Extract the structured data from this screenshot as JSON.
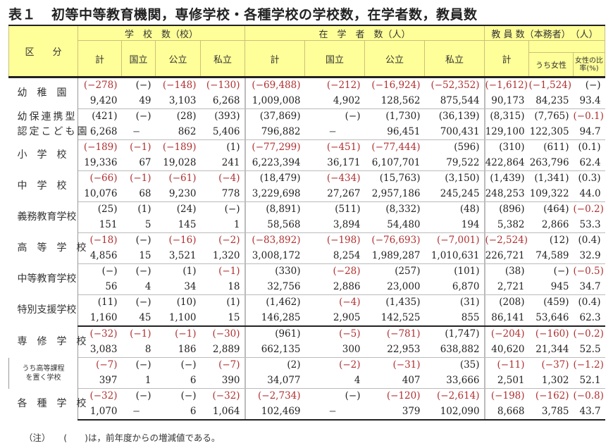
{
  "title": {
    "number": "表１",
    "text": "初等中等教育機関，専修学校・各種学校の学校数，在学者数，教員数"
  },
  "header": {
    "category": "区　　分",
    "groups": {
      "schools": "学　校　数（校）",
      "students": "在　学　者　数（人）",
      "teachers": "教 員 数（本務者）　（人）"
    },
    "cols": {
      "total": "計",
      "national": "国立",
      "public": "公立",
      "private": "私立",
      "female": "うち女性",
      "female_ratio": "女性の比率(%)"
    }
  },
  "rows": [
    {
      "label": "幼　稚　園",
      "chg": [
        "(−278)",
        "(−)",
        "(−148)",
        "(−130)",
        "(−69,488)",
        "(−212)",
        "(−16,924)",
        "(−52,352)",
        "(−1,612)",
        "(−1,524)",
        "(−)"
      ],
      "val": [
        "9,420",
        "49",
        "3,103",
        "6,268",
        "1,009,008",
        "4,902",
        "128,562",
        "875,544",
        "90,173",
        "84,235",
        "93.4"
      ]
    },
    {
      "label": "幼保連携型",
      "label2": "認定こども園",
      "chg": [
        "(421)",
        "(−)",
        "(28)",
        "(393)",
        "(37,869)",
        "(−)",
        "(1,730)",
        "(36,139)",
        "(8,315)",
        "(7,765)",
        "(−0.1)"
      ],
      "val": [
        "6,268",
        "−",
        "862",
        "5,406",
        "796,882",
        "−",
        "96,451",
        "700,431",
        "129,100",
        "122,305",
        "94.7"
      ]
    },
    {
      "label": "小　学　校",
      "chg": [
        "(−189)",
        "(−1)",
        "(−189)",
        "(1)",
        "(−77,299)",
        "(−451)",
        "(−77,444)",
        "(596)",
        "(310)",
        "(611)",
        "(0.1)"
      ],
      "val": [
        "19,336",
        "67",
        "19,028",
        "241",
        "6,223,394",
        "36,171",
        "6,107,701",
        "79,522",
        "422,864",
        "263,796",
        "62.4"
      ]
    },
    {
      "label": "中　学　校",
      "chg": [
        "(−66)",
        "(−1)",
        "(−61)",
        "(−4)",
        "(18,479)",
        "(−434)",
        "(15,763)",
        "(3,150)",
        "(1,439)",
        "(1,341)",
        "(0.3)"
      ],
      "val": [
        "10,076",
        "68",
        "9,230",
        "778",
        "3,229,698",
        "27,267",
        "2,957,186",
        "245,245",
        "248,253",
        "109,322",
        "44.0"
      ]
    },
    {
      "label": "義務教育学校",
      "chg": [
        "(25)",
        "(1)",
        "(24)",
        "(−)",
        "(8,891)",
        "(511)",
        "(8,332)",
        "(48)",
        "(896)",
        "(464)",
        "(−0.2)"
      ],
      "val": [
        "151",
        "5",
        "145",
        "1",
        "58,568",
        "3,894",
        "54,480",
        "194",
        "5,382",
        "2,866",
        "53.3"
      ]
    },
    {
      "label": "高　等　学　校",
      "chg": [
        "(−18)",
        "(−)",
        "(−16)",
        "(−2)",
        "(−83,892)",
        "(−198)",
        "(−76,693)",
        "(−7,001)",
        "(−2,524)",
        "(12)",
        "(0.4)"
      ],
      "val": [
        "4,856",
        "15",
        "3,521",
        "1,320",
        "3,008,172",
        "8,254",
        "1,989,287",
        "1,010,631",
        "226,721",
        "74,589",
        "32.9"
      ]
    },
    {
      "label": "中等教育学校",
      "chg": [
        "(−)",
        "(−)",
        "(1)",
        "(−1)",
        "(330)",
        "(−28)",
        "(257)",
        "(101)",
        "(38)",
        "(−)",
        "(−0.5)"
      ],
      "val": [
        "56",
        "4",
        "34",
        "18",
        "32,756",
        "2,886",
        "23,000",
        "6,870",
        "2,721",
        "945",
        "34.7"
      ]
    },
    {
      "label": "特別支援学校",
      "chg": [
        "(11)",
        "(−)",
        "(10)",
        "(1)",
        "(1,462)",
        "(−4)",
        "(1,435)",
        "(31)",
        "(208)",
        "(459)",
        "(0.4)"
      ],
      "val": [
        "1,160",
        "45",
        "1,100",
        "15",
        "146,285",
        "2,905",
        "142,525",
        "855",
        "86,141",
        "53,646",
        "62.3"
      ]
    },
    {
      "label": "専　修　学　校",
      "chg": [
        "(−32)",
        "(−1)",
        "(−1)",
        "(−30)",
        "(961)",
        "(−5)",
        "(−781)",
        "(1,747)",
        "(−204)",
        "(−160)",
        "(−0.2)"
      ],
      "val": [
        "3,083",
        "8",
        "186",
        "2,889",
        "662,135",
        "300",
        "22,953",
        "638,882",
        "40,620",
        "21,344",
        "52.5"
      ]
    },
    {
      "label": "うち高等課程",
      "label2": "を置く学校",
      "chg": [
        "(−7)",
        "(−)",
        "(−)",
        "(−7)",
        "(2)",
        "(−2)",
        "(−31)",
        "(35)",
        "(−11)",
        "(−37)",
        "(−1.2)"
      ],
      "val": [
        "397",
        "1",
        "6",
        "390",
        "34,077",
        "4",
        "407",
        "33,666",
        "2,501",
        "1,302",
        "52.1"
      ]
    },
    {
      "label": "各　種　学　校",
      "chg": [
        "(−32)",
        "(−)",
        "(−)",
        "(−32)",
        "(−2,734)",
        "(−)",
        "(−120)",
        "(−2,614)",
        "(−198)",
        "(−162)",
        "(−0.8)"
      ],
      "val": [
        "1,070",
        "−",
        "6",
        "1,064",
        "102,469",
        "−",
        "379",
        "102,090",
        "8,668",
        "3,785",
        "43.7"
      ]
    }
  ],
  "note": "（注）　　(　　)は，前年度からの増減値である。",
  "colors": {
    "header_bg": "#ffff99",
    "negative": "#b03030",
    "text": "#222222"
  }
}
